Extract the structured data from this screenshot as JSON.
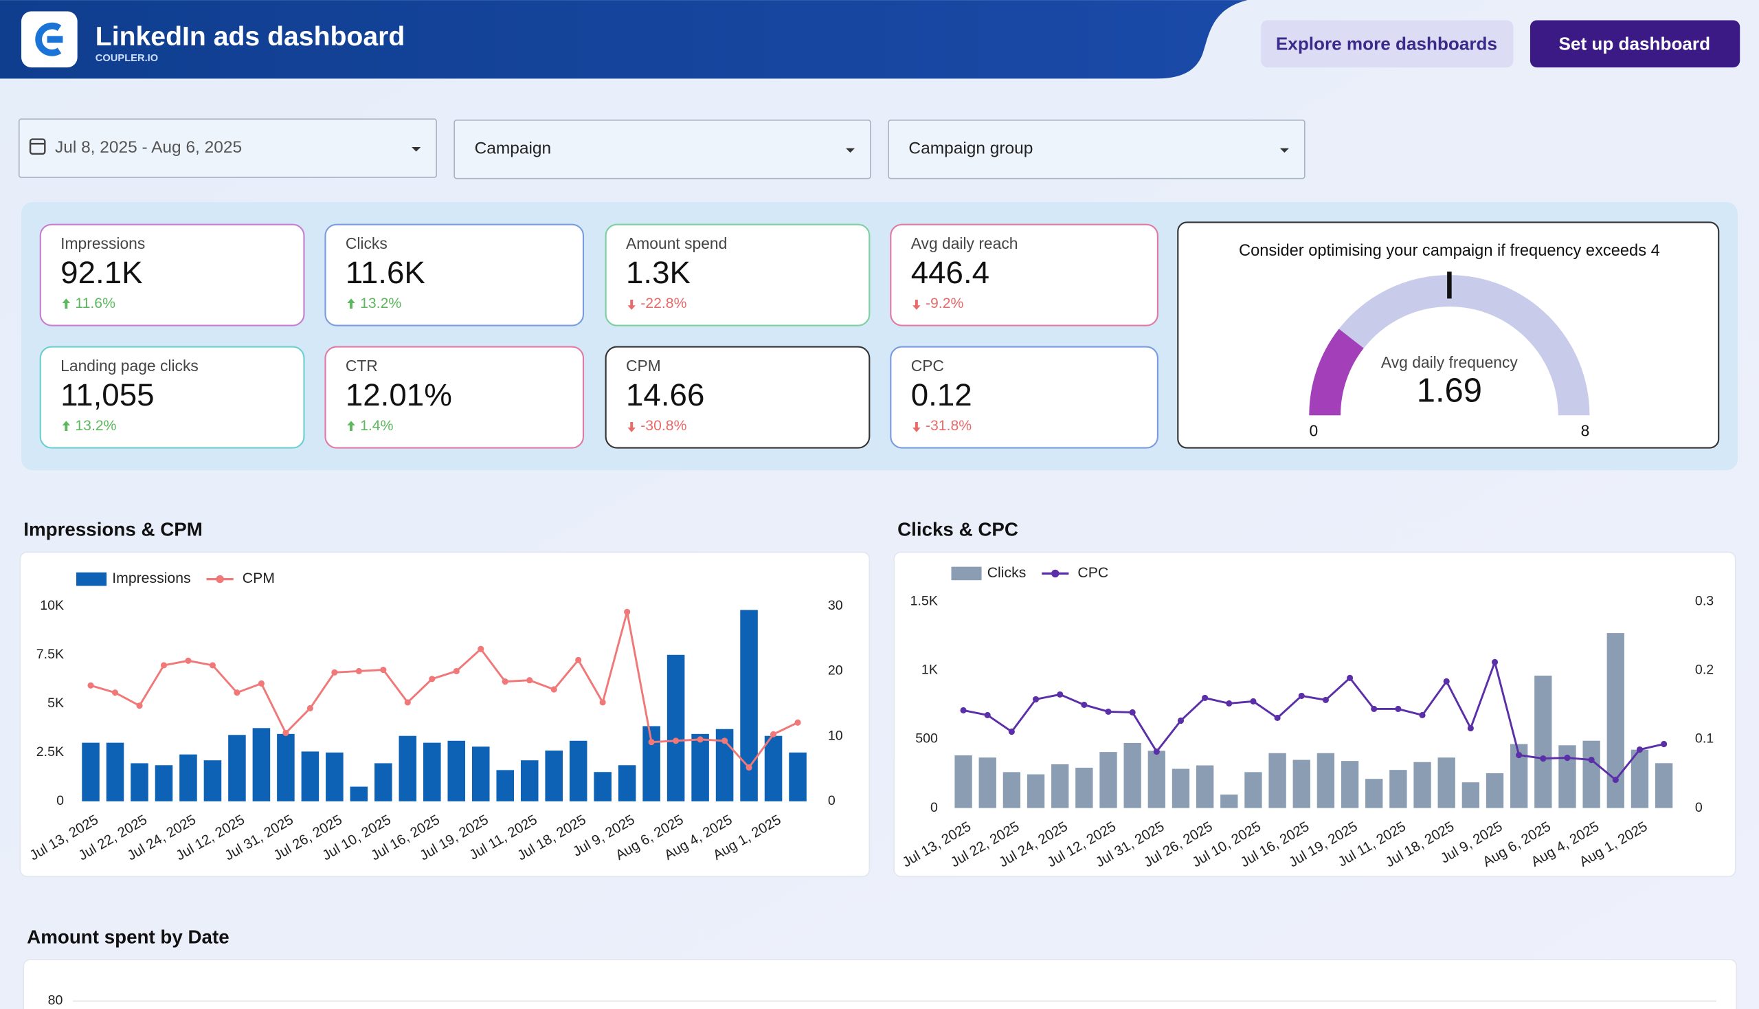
{
  "header": {
    "title": "LinkedIn ads dashboard",
    "subtitle": "COUPLER.IO",
    "buttons": [
      "Explore more dashboards",
      "Set up dashboard"
    ]
  },
  "filters": [
    "Jul 8, 2025 - Aug 6, 2025",
    "Campaign",
    "Campaign group"
  ],
  "kpis": [
    {
      "label": "Impressions",
      "value": "92.1K",
      "change": "11.6%",
      "trend": "up",
      "color": "#c77dd0"
    },
    {
      "label": "Clicks",
      "value": "11.6K",
      "change": "13.2%",
      "trend": "up",
      "color": "#7a9be0"
    },
    {
      "label": "Amount spend",
      "value": "1.3K",
      "change": "-22.8%",
      "trend": "down",
      "color": "#7dcf9f"
    },
    {
      "label": "Avg daily reach",
      "value": "446.4",
      "change": "-9.2%",
      "trend": "down",
      "color": "#e07aa5"
    },
    {
      "label": "Landing page clicks",
      "value": "11,055",
      "change": "13.2%",
      "trend": "up",
      "color": "#6ccfd0"
    },
    {
      "label": "CTR",
      "value": "12.01%",
      "change": "1.4%",
      "trend": "up",
      "color": "#e07aa5"
    },
    {
      "label": "CPM",
      "value": "14.66",
      "change": "-30.8%",
      "trend": "down",
      "color": "#333333"
    },
    {
      "label": "CPC",
      "value": "0.12",
      "change": "-31.8%",
      "trend": "down",
      "color": "#7a9be0"
    }
  ],
  "gauge": {
    "title": "Consider optimising your campaign if frequency exceeds 4",
    "label": "Avg daily frequency",
    "value": 1.69,
    "min": 0,
    "max": 8,
    "target": 4,
    "color": "#a23fb9",
    "track_color": "#c8cbea"
  },
  "chart_data": [
    {
      "type": "combo",
      "title": "Impressions & CPM",
      "categories": [
        "Jul 13, 2025",
        null,
        "Jul 22, 2025",
        null,
        "Jul 24, 2025",
        null,
        "Jul 12, 2025",
        null,
        "Jul 31, 2025",
        null,
        "Jul 26, 2025",
        null,
        "Jul 10, 2025",
        null,
        "Jul 16, 2025",
        null,
        "Jul 19, 2025",
        null,
        "Jul 11, 2025",
        null,
        "Jul 18, 2025",
        null,
        "Jul 9, 2025",
        null,
        "Aug 6, 2025",
        null,
        "Aug 4, 2025",
        null,
        "Aug 1, 2025",
        null
      ],
      "series": [
        {
          "name": "Impressions",
          "type": "bar",
          "color": "#0d62b5",
          "values": [
            3000,
            3000,
            1950,
            1850,
            2400,
            2100,
            3400,
            3750,
            3450,
            2550,
            2500,
            750,
            1950,
            3350,
            3000,
            3100,
            2800,
            1600,
            2100,
            2600,
            3100,
            1500,
            1850,
            3850,
            7500,
            3450,
            3700,
            9800,
            3350,
            2500
          ]
        },
        {
          "name": "CPM",
          "type": "line",
          "axis": "y2",
          "color": "#f07878",
          "values": [
            17.8,
            16.7,
            14.7,
            20.9,
            21.6,
            20.9,
            16.7,
            18.1,
            10.5,
            14.3,
            19.8,
            20.0,
            20.2,
            15.2,
            18.8,
            20.0,
            23.4,
            18.4,
            18.6,
            17.2,
            21.7,
            15.2,
            29.1,
            9.1,
            9.3,
            9.5,
            9.3,
            5.2,
            10.3,
            12.1
          ]
        }
      ],
      "ylim": [
        0,
        10000
      ],
      "yticks": [
        0,
        {
          "value": 2500,
          "label": "2.5K"
        },
        {
          "value": 5000,
          "label": "5K"
        },
        {
          "value": 7500,
          "label": "7.5K"
        },
        {
          "value": 10000,
          "label": "10K"
        }
      ],
      "y2lim": [
        0,
        30
      ],
      "y2ticks": [
        0,
        10,
        20,
        30
      ],
      "grid": false
    },
    {
      "type": "combo",
      "title": "Clicks & CPC",
      "categories": [
        "Jul 13, 2025",
        null,
        "Jul 22, 2025",
        null,
        "Jul 24, 2025",
        null,
        "Jul 12, 2025",
        null,
        "Jul 31, 2025",
        null,
        "Jul 26, 2025",
        null,
        "Jul 10, 2025",
        null,
        "Jul 16, 2025",
        null,
        "Jul 19, 2025",
        null,
        "Jul 11, 2025",
        null,
        "Jul 18, 2025",
        null,
        "Jul 9, 2025",
        null,
        "Aug 6, 2025",
        null,
        "Aug 4, 2025",
        null,
        "Aug 1, 2025",
        null
      ],
      "series": [
        {
          "name": "Clicks",
          "type": "bar",
          "color": "#8a9db3",
          "values": [
            383,
            367,
            261,
            245,
            318,
            293,
            407,
            473,
            416,
            285,
            310,
            98,
            261,
            399,
            350,
            399,
            342,
            212,
            277,
            334,
            367,
            187,
            253,
            465,
            962,
            456,
            489,
            1271,
            424,
            326
          ]
        },
        {
          "name": "CPC",
          "type": "line",
          "axis": "y2",
          "color": "#5b2fa8",
          "values": [
            0.142,
            0.135,
            0.111,
            0.158,
            0.165,
            0.15,
            0.14,
            0.139,
            0.082,
            0.127,
            0.16,
            0.152,
            0.155,
            0.131,
            0.163,
            0.157,
            0.189,
            0.144,
            0.144,
            0.135,
            0.184,
            0.116,
            0.212,
            0.077,
            0.072,
            0.073,
            0.07,
            0.041,
            0.085,
            0.093
          ]
        }
      ],
      "ylim": [
        0,
        1500
      ],
      "yticks": [
        0,
        500,
        {
          "value": 1000,
          "label": "1K"
        },
        {
          "value": 1500,
          "label": "1.5K"
        }
      ],
      "y2lim": [
        0,
        0.3
      ],
      "y2ticks": [
        0,
        0.1,
        0.2,
        0.3
      ],
      "grid": false
    },
    {
      "type": "line",
      "title": "Amount spent by Date",
      "yticks": [
        80
      ],
      "grid": true
    }
  ]
}
